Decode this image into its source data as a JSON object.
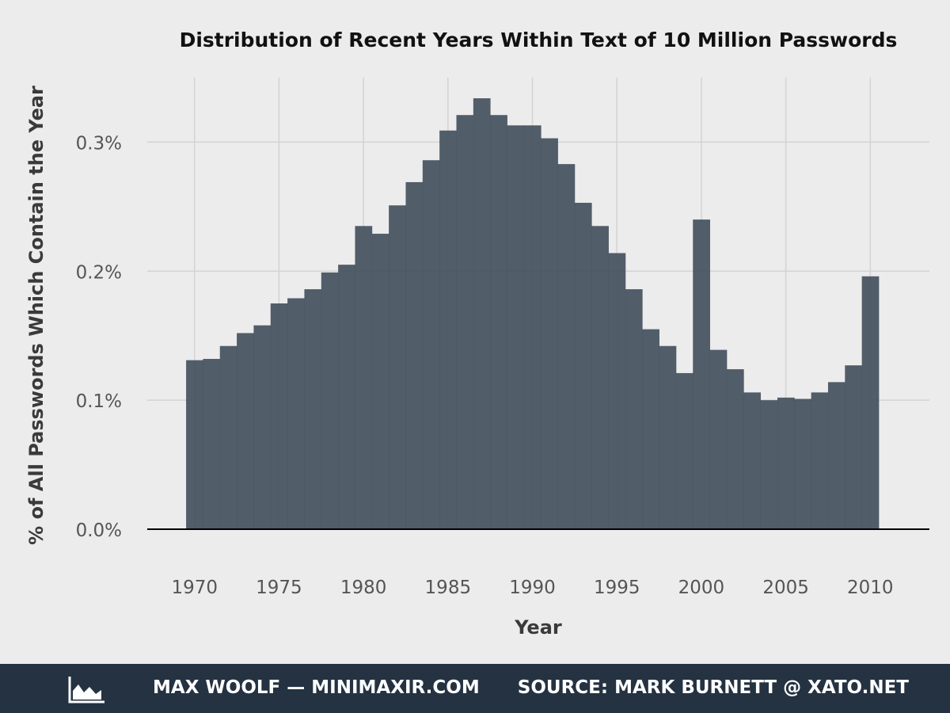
{
  "chart_data": {
    "type": "bar",
    "title": "Distribution of Recent Years Within Text of 10 Million Passwords",
    "xlabel": "Year",
    "ylabel": "% of All Passwords Which Contain the Year",
    "x": [
      1970,
      1971,
      1972,
      1973,
      1974,
      1975,
      1976,
      1977,
      1978,
      1979,
      1980,
      1981,
      1982,
      1983,
      1984,
      1985,
      1986,
      1987,
      1988,
      1989,
      1990,
      1991,
      1992,
      1993,
      1994,
      1995,
      1996,
      1997,
      1998,
      1999,
      2000,
      2001,
      2002,
      2003,
      2004,
      2005,
      2006,
      2007,
      2008,
      2009,
      2010
    ],
    "values": [
      0.131,
      0.132,
      0.142,
      0.152,
      0.158,
      0.175,
      0.179,
      0.186,
      0.199,
      0.205,
      0.235,
      0.229,
      0.251,
      0.269,
      0.286,
      0.309,
      0.321,
      0.334,
      0.321,
      0.313,
      0.313,
      0.303,
      0.283,
      0.253,
      0.235,
      0.214,
      0.186,
      0.155,
      0.142,
      0.121,
      0.24,
      0.139,
      0.124,
      0.106,
      0.1,
      0.102,
      0.101,
      0.106,
      0.114,
      0.127,
      0.196
    ],
    "ylim": [
      0,
      0.35
    ],
    "xlim": [
      1967.2,
      2013.5
    ],
    "x_ticks": [
      1970,
      1975,
      1980,
      1985,
      1990,
      1995,
      2000,
      2005,
      2010
    ],
    "x_tick_labels": [
      "1970",
      "1975",
      "1980",
      "1985",
      "1990",
      "1995",
      "2000",
      "2005",
      "2010"
    ],
    "y_ticks": [
      0.0,
      0.1,
      0.2,
      0.3
    ],
    "y_tick_labels": [
      "0.0%",
      "0.1%",
      "0.2%",
      "0.3%"
    ],
    "bar_color": "#465260",
    "grid": true
  },
  "footer": {
    "author": "MAX WOOLF — MINIMAXIR.COM",
    "source": "SOURCE: MARK BURNETT @ XATO.NET",
    "logo_icon": "area-chart-icon",
    "background": "#243242"
  }
}
